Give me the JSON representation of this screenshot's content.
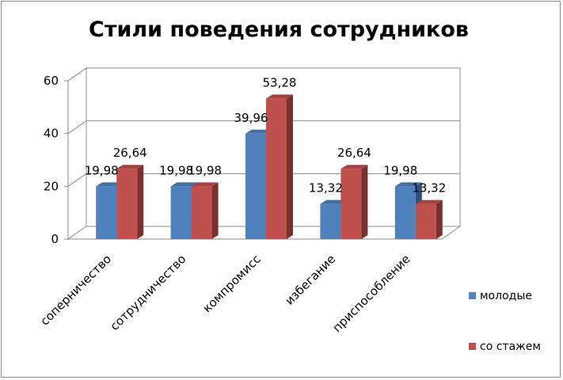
{
  "chart_data": {
    "type": "bar",
    "title": "Стили поведения сотрудников",
    "categories": [
      "соперничество",
      "сотрудничество",
      "компромисс",
      "избегание",
      "приспособление"
    ],
    "series": [
      {
        "name": "молодые",
        "values": [
          19.98,
          19.98,
          39.96,
          13.32,
          19.98
        ],
        "labels": [
          "19,98",
          "19,98",
          "39,96",
          "13,32",
          "19,98"
        ],
        "color": "#4f81bd"
      },
      {
        "name": "со стажем",
        "values": [
          26.64,
          19.98,
          53.28,
          26.64,
          13.32
        ],
        "labels": [
          "26,64",
          "19,98",
          "53,28",
          "26,64",
          "13,32"
        ],
        "color": "#c0504d"
      }
    ],
    "ylim": [
      0,
      60
    ],
    "yticks": [
      0,
      20,
      40,
      60
    ],
    "grid": true,
    "legend": "right",
    "style": "3d-clustered-column"
  }
}
